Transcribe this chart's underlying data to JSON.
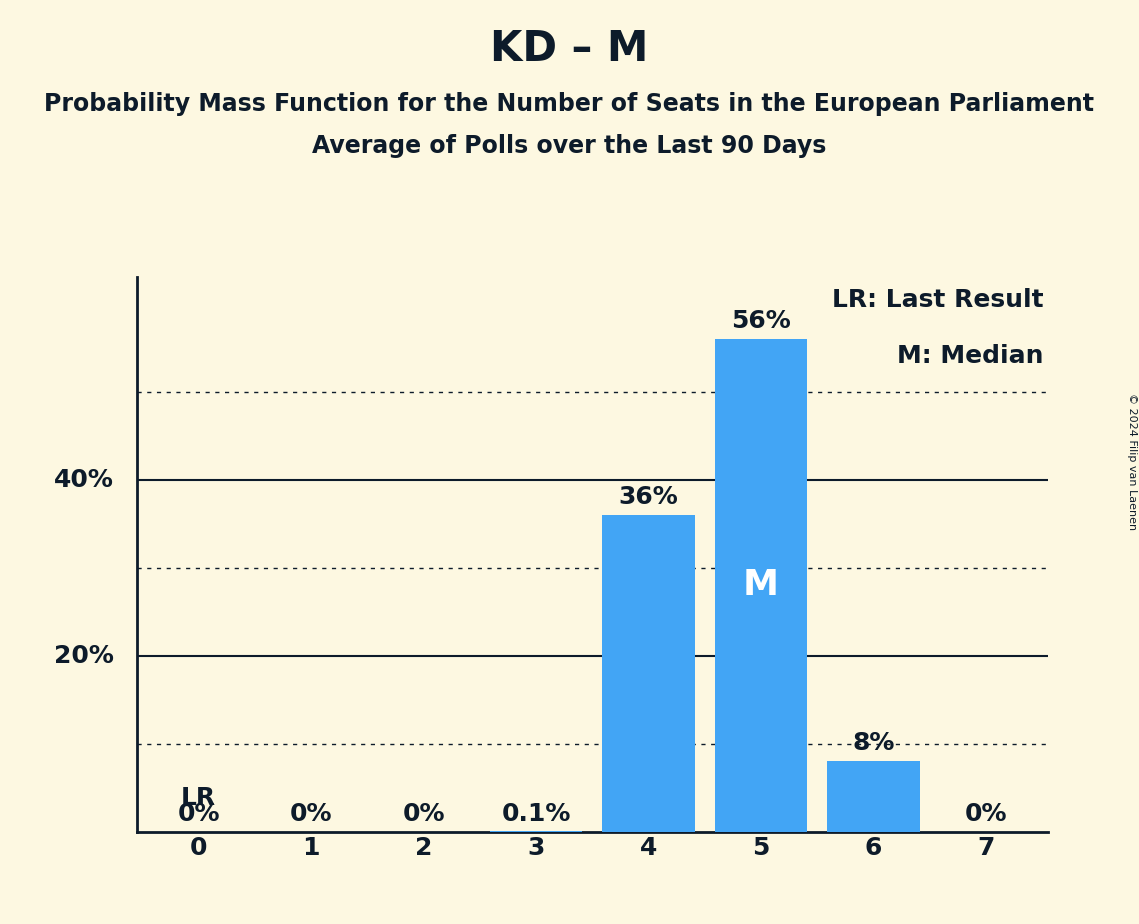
{
  "title": "KD – M",
  "subtitle1": "Probability Mass Function for the Number of Seats in the European Parliament",
  "subtitle2": "Average of Polls over the Last 90 Days",
  "categories": [
    0,
    1,
    2,
    3,
    4,
    5,
    6,
    7
  ],
  "values": [
    0.0,
    0.0,
    0.0,
    0.001,
    0.36,
    0.56,
    0.08,
    0.0
  ],
  "bar_color": "#42a5f5",
  "background_color": "#fdf8e1",
  "text_color": "#0d1b2a",
  "bar_labels": [
    "0%",
    "0%",
    "0%",
    "0.1%",
    "36%",
    "56%",
    "8%",
    "0%"
  ],
  "median_bar": 5,
  "lr_bar": 0,
  "legend_lr": "LR: Last Result",
  "legend_m": "M: Median",
  "ytick_solid": [
    0.2,
    0.4
  ],
  "ytick_dotted": [
    0.1,
    0.3,
    0.5
  ],
  "ytick_labeled": [
    0.2,
    0.4
  ],
  "ytick_label_map": {
    "0.2": "20%",
    "0.4": "40%"
  },
  "ylim": [
    0,
    0.63
  ],
  "copyright_text": "© 2024 Filip van Laenen",
  "title_fontsize": 30,
  "subtitle_fontsize": 17,
  "bar_label_fontsize": 18,
  "axis_tick_fontsize": 18,
  "legend_fontsize": 18,
  "copyright_fontsize": 8
}
